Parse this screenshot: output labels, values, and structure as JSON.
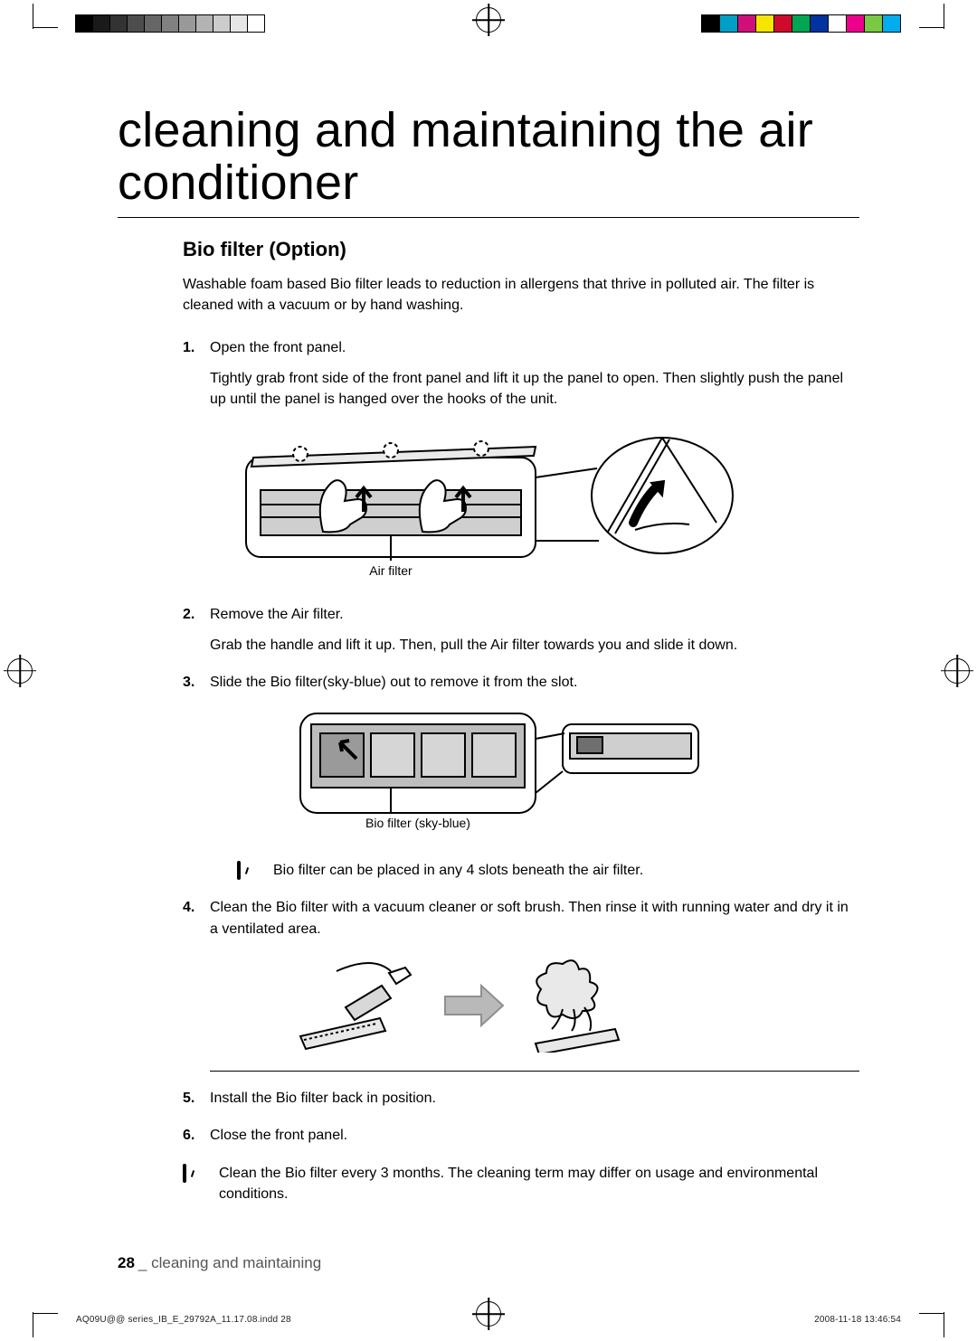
{
  "print_marks": {
    "register_color": "#000000",
    "grayscale_bar": {
      "swatch_width": 20,
      "colors": [
        "#000000",
        "#1a1a1a",
        "#333333",
        "#4d4d4d",
        "#666666",
        "#808080",
        "#999999",
        "#b3b3b3",
        "#cccccc",
        "#e6e6e6",
        "#ffffff"
      ],
      "border": "#000000"
    },
    "color_bar": {
      "swatch_width": 21,
      "colors": [
        "#000000",
        "#00a0c6",
        "#d10f7a",
        "#f6e500",
        "#cf0a2c",
        "#00a651",
        "#0033a0",
        "#ffffff",
        "#ec008c",
        "#7ac943",
        "#00aeef"
      ],
      "border": "#000000"
    }
  },
  "title": "cleaning and maintaining the air conditioner",
  "subtitle": "Bio filter (Option)",
  "lead": "Washable foam based Bio filter leads to reduction in allergens that thrive in polluted air. The filter is cleaned with a vacuum or by hand washing.",
  "steps": [
    {
      "title": "Open the front panel.",
      "body": "Tightly grab front side of the front panel and lift it up the panel to open. Then slightly push the panel up until the panel is hanged over the hooks of the unit."
    },
    {
      "title": "Remove the Air filter.",
      "body": "Grab the handle and lift it up. Then, pull the Air filter towards you and slide it down."
    },
    {
      "title": "Slide the Bio filter(sky-blue) out to remove it from the slot.",
      "body": ""
    },
    {
      "title": "Clean the Bio filter with a vacuum cleaner or soft brush. Then rinse it with running water and dry it in a ventilated area.",
      "body": ""
    },
    {
      "title": "Install the Bio filter back in position.",
      "body": ""
    },
    {
      "title": "Close the front panel.",
      "body": ""
    }
  ],
  "figures": {
    "fig1": {
      "label": "Air filter",
      "stroke": "#000000",
      "fill_light": "#ffffff",
      "fill_mid": "#d0d0d0",
      "fill_dark": "#9a9a9a"
    },
    "fig2": {
      "label": "Bio filter (sky-blue)",
      "stroke": "#000000",
      "fill_light": "#ffffff",
      "fill_mid": "#d0d0d0",
      "fill_dark": "#9a9a9a"
    },
    "fig3": {
      "arrow_color": "#b9b9b9",
      "stroke": "#000000"
    }
  },
  "notes": {
    "n1": "Bio filter can be placed in any 4 slots beneath the air filter.",
    "n2": "Clean the Bio filter every 3 months. The cleaning term may differ on usage and environmental conditions."
  },
  "footer": {
    "page": "28",
    "section": "cleaning and maintaining"
  },
  "imprint": {
    "left": "AQ09U@@ series_IB_E_29792A_11.17.08.indd   28",
    "right": "2008-11-18   13:46:54"
  },
  "typography": {
    "title_fontsize": 54,
    "title_weight": 300,
    "subtitle_fontsize": 22,
    "subtitle_weight": 700,
    "body_fontsize": 16,
    "footer_fontsize": 17,
    "imprint_fontsize": 10,
    "text_color": "#000000",
    "muted_color": "#555555",
    "rule_color": "#000000",
    "background": "#ffffff"
  }
}
